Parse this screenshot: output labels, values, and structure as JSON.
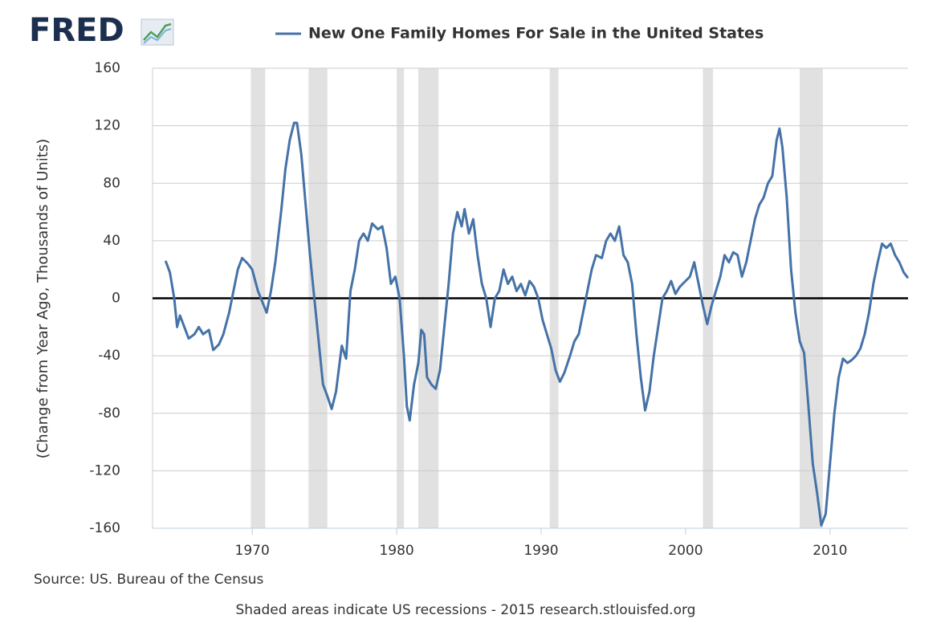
{
  "logo": "FRED",
  "chart_data": {
    "type": "line",
    "title": "New One Family Homes For Sale in the United States",
    "ylabel": "(Change from Year Ago, Thousands of Units)",
    "source": "Source: US. Bureau of the Census",
    "note": "Shaded areas indicate US recessions - 2015 research.stlouisfed.org",
    "xlim": [
      1963.1,
      2015.4
    ],
    "xticks": [
      1970,
      1980,
      1990,
      2000,
      2010
    ],
    "ylim": [
      -160,
      160
    ],
    "yticks": [
      -160,
      -120,
      -80,
      -40,
      0,
      40,
      80,
      120,
      160
    ],
    "grid": true,
    "hline": 0,
    "recessions": [
      [
        1969.9,
        1970.9
      ],
      [
        1973.9,
        1975.2
      ],
      [
        1980.0,
        1980.5
      ],
      [
        1981.5,
        1982.9
      ],
      [
        1990.6,
        1991.2
      ],
      [
        2001.2,
        2001.9
      ],
      [
        2007.9,
        2009.5
      ]
    ],
    "recession_color": "#e1e1e1",
    "x": [
      1964.0,
      1964.3,
      1964.6,
      1964.8,
      1965.0,
      1965.3,
      1965.6,
      1966.0,
      1966.3,
      1966.6,
      1967.0,
      1967.3,
      1967.7,
      1968.0,
      1968.4,
      1968.7,
      1969.0,
      1969.3,
      1969.7,
      1970.0,
      1970.4,
      1970.8,
      1971.0,
      1971.3,
      1971.6,
      1972.0,
      1972.3,
      1972.6,
      1972.9,
      1973.1,
      1973.4,
      1973.7,
      1974.0,
      1974.3,
      1974.6,
      1974.9,
      1975.2,
      1975.5,
      1975.8,
      1976.2,
      1976.5,
      1976.8,
      1977.1,
      1977.4,
      1977.7,
      1978.0,
      1978.3,
      1978.7,
      1979.0,
      1979.3,
      1979.6,
      1979.9,
      1980.2,
      1980.5,
      1980.7,
      1980.9,
      1981.2,
      1981.5,
      1981.7,
      1981.9,
      1982.1,
      1982.4,
      1982.7,
      1983.0,
      1983.3,
      1983.6,
      1983.9,
      1984.2,
      1984.5,
      1984.7,
      1985.0,
      1985.3,
      1985.6,
      1985.9,
      1986.2,
      1986.5,
      1986.8,
      1987.1,
      1987.4,
      1987.7,
      1988.0,
      1988.3,
      1988.6,
      1988.9,
      1989.2,
      1989.5,
      1989.8,
      1990.1,
      1990.4,
      1990.7,
      1991.0,
      1991.3,
      1991.6,
      1992.0,
      1992.3,
      1992.6,
      1992.9,
      1993.2,
      1993.5,
      1993.8,
      1994.2,
      1994.5,
      1994.8,
      1995.1,
      1995.4,
      1995.7,
      1996.0,
      1996.3,
      1996.6,
      1996.9,
      1997.2,
      1997.5,
      1997.8,
      1998.1,
      1998.4,
      1998.7,
      1999.0,
      1999.3,
      1999.6,
      2000.0,
      2000.3,
      2000.6,
      2000.9,
      2001.2,
      2001.5,
      2001.8,
      2002.1,
      2002.4,
      2002.7,
      2003.0,
      2003.3,
      2003.6,
      2003.9,
      2004.2,
      2004.5,
      2004.8,
      2005.1,
      2005.4,
      2005.7,
      2006.0,
      2006.3,
      2006.5,
      2006.7,
      2007.0,
      2007.3,
      2007.6,
      2007.9,
      2008.2,
      2008.5,
      2008.8,
      2009.1,
      2009.4,
      2009.7,
      2010.0,
      2010.3,
      2010.6,
      2010.9,
      2011.2,
      2011.5,
      2011.8,
      2012.1,
      2012.4,
      2012.7,
      2013.0,
      2013.3,
      2013.6,
      2013.9,
      2014.2,
      2014.5,
      2014.8,
      2015.1,
      2015.4
    ],
    "series": [
      {
        "name": "New One Family Homes For Sale in the United States",
        "color": "#4572a7",
        "values": [
          26,
          18,
          0,
          -20,
          -12,
          -20,
          -28,
          -25,
          -20,
          -25,
          -22,
          -36,
          -32,
          -25,
          -10,
          5,
          20,
          28,
          24,
          20,
          5,
          -5,
          -10,
          5,
          25,
          60,
          90,
          110,
          122,
          122,
          100,
          65,
          30,
          0,
          -30,
          -60,
          -68,
          -77,
          -65,
          -33,
          -42,
          5,
          20,
          40,
          45,
          40,
          52,
          48,
          50,
          35,
          10,
          15,
          0,
          -40,
          -75,
          -85,
          -60,
          -45,
          -22,
          -25,
          -55,
          -60,
          -63,
          -50,
          -20,
          10,
          45,
          60,
          50,
          62,
          45,
          55,
          30,
          10,
          0,
          -20,
          0,
          5,
          20,
          10,
          15,
          5,
          10,
          2,
          12,
          8,
          0,
          -15,
          -25,
          -35,
          -50,
          -58,
          -52,
          -40,
          -30,
          -25,
          -10,
          5,
          20,
          30,
          28,
          40,
          45,
          40,
          50,
          30,
          25,
          10,
          -25,
          -55,
          -78,
          -65,
          -40,
          -20,
          0,
          5,
          12,
          3,
          8,
          12,
          15,
          25,
          10,
          -5,
          -18,
          -5,
          5,
          15,
          30,
          25,
          32,
          30,
          15,
          25,
          40,
          55,
          65,
          70,
          80,
          85,
          110,
          118,
          105,
          70,
          20,
          -10,
          -30,
          -38,
          -75,
          -115,
          -135,
          -158,
          -150,
          -115,
          -80,
          -55,
          -42,
          -45,
          -43,
          -40,
          -35,
          -25,
          -10,
          10,
          25,
          38,
          35,
          38,
          30,
          25,
          18,
          14
        ]
      }
    ]
  }
}
